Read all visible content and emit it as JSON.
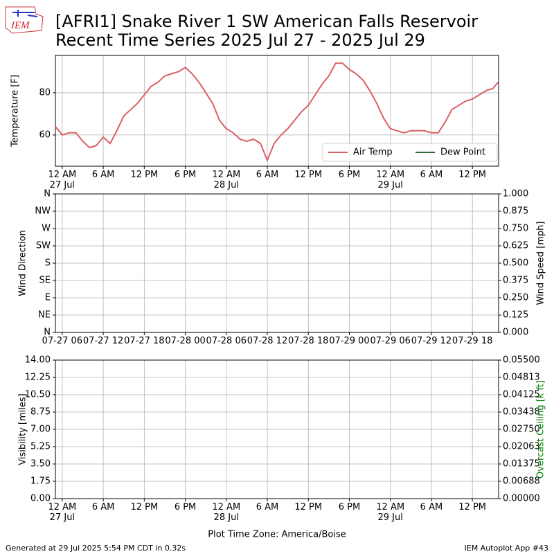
{
  "title": "[AFRI1] Snake River 1 SW American Falls Reservoir",
  "subtitle": "Recent Time Series 2025 Jul 27 - 2025 Jul 29",
  "logo_text": "IEM",
  "footer": {
    "left": "Generated at 29 Jul 2025 5:54 PM CDT in 0.32s",
    "right": "IEM Autoplot App #43"
  },
  "chart_data": [
    {
      "type": "line",
      "ylabel": "Temperature [F]",
      "grid": true,
      "legend": "lower right",
      "xlim": [
        "2025-07-26 23:00",
        "2025-07-29 15:50"
      ],
      "ylim": [
        45.2,
        97.7
      ],
      "yticks": [
        60,
        80
      ],
      "xticks": [
        {
          "value": "2025-07-27 00:00",
          "label": "12 AM\n27 Jul"
        },
        {
          "value": "2025-07-27 06:00",
          "label": "6 AM"
        },
        {
          "value": "2025-07-27 12:00",
          "label": "12 PM"
        },
        {
          "value": "2025-07-27 18:00",
          "label": "6 PM"
        },
        {
          "value": "2025-07-28 00:00",
          "label": "12 AM\n28 Jul"
        },
        {
          "value": "2025-07-28 06:00",
          "label": "6 AM"
        },
        {
          "value": "2025-07-28 12:00",
          "label": "12 PM"
        },
        {
          "value": "2025-07-28 18:00",
          "label": "6 PM"
        },
        {
          "value": "2025-07-29 00:00",
          "label": "12 AM\n29 Jul"
        },
        {
          "value": "2025-07-29 06:00",
          "label": "6 AM"
        },
        {
          "value": "2025-07-29 12:00",
          "label": "12 PM"
        }
      ],
      "x": [
        "2025-07-26 23:00",
        "2025-07-27 00:00",
        "2025-07-27 01:00",
        "2025-07-27 02:00",
        "2025-07-27 03:00",
        "2025-07-27 04:00",
        "2025-07-27 05:00",
        "2025-07-27 06:00",
        "2025-07-27 07:00",
        "2025-07-27 08:00",
        "2025-07-27 09:00",
        "2025-07-27 10:00",
        "2025-07-27 11:00",
        "2025-07-27 12:00",
        "2025-07-27 13:00",
        "2025-07-27 14:00",
        "2025-07-27 15:00",
        "2025-07-27 16:00",
        "2025-07-27 17:00",
        "2025-07-27 18:00",
        "2025-07-27 19:00",
        "2025-07-27 20:00",
        "2025-07-27 21:00",
        "2025-07-27 22:00",
        "2025-07-27 23:00",
        "2025-07-28 00:00",
        "2025-07-28 01:00",
        "2025-07-28 02:00",
        "2025-07-28 03:00",
        "2025-07-28 04:00",
        "2025-07-28 05:00",
        "2025-07-28 06:00",
        "2025-07-28 07:00",
        "2025-07-28 08:00",
        "2025-07-28 09:00",
        "2025-07-28 10:00",
        "2025-07-28 11:00",
        "2025-07-28 12:00",
        "2025-07-28 13:00",
        "2025-07-28 14:00",
        "2025-07-28 15:00",
        "2025-07-28 16:00",
        "2025-07-28 17:00",
        "2025-07-28 18:00",
        "2025-07-28 19:00",
        "2025-07-28 20:00",
        "2025-07-28 21:00",
        "2025-07-28 22:00",
        "2025-07-28 23:00",
        "2025-07-29 00:00",
        "2025-07-29 01:00",
        "2025-07-29 02:00",
        "2025-07-29 03:00",
        "2025-07-29 04:00",
        "2025-07-29 05:00",
        "2025-07-29 06:00",
        "2025-07-29 07:00",
        "2025-07-29 08:00",
        "2025-07-29 09:00",
        "2025-07-29 10:00",
        "2025-07-29 11:00",
        "2025-07-29 12:00",
        "2025-07-29 13:00",
        "2025-07-29 14:00",
        "2025-07-29 15:00",
        "2025-07-29 15:45"
      ],
      "series": [
        {
          "name": "Air Temp",
          "color": "#d95f63",
          "values": [
            64,
            60,
            61,
            61,
            57,
            54,
            55,
            59,
            56,
            62,
            69,
            72,
            75,
            79,
            83,
            85,
            88,
            89,
            90,
            92,
            89,
            85,
            80,
            75,
            67,
            63,
            61,
            58,
            57,
            58,
            56,
            48,
            56,
            60,
            63,
            67,
            71,
            74,
            79,
            84,
            88,
            94,
            94,
            91,
            89,
            86,
            81,
            75,
            68,
            63,
            62,
            61,
            62,
            62,
            62,
            61,
            61,
            66,
            72,
            74,
            76,
            77,
            79,
            81,
            82,
            85
          ]
        },
        {
          "name": "Dew Point",
          "color": "#2e6b2e",
          "values": [
            null,
            null,
            null,
            null,
            null,
            null,
            null,
            null,
            null,
            null,
            null,
            null,
            null,
            null,
            null,
            null,
            null,
            null,
            null,
            null,
            null,
            null,
            null,
            null,
            null,
            null,
            null,
            null,
            null,
            null,
            null,
            null,
            null,
            null,
            null,
            null,
            null,
            null,
            null,
            null,
            null,
            null,
            null,
            null,
            null,
            null,
            null,
            null,
            null,
            null,
            null,
            null,
            null,
            null,
            null,
            null,
            null,
            null,
            null,
            null,
            null,
            null,
            null,
            null,
            null,
            null
          ]
        }
      ]
    },
    {
      "type": "line",
      "ylabel": "Wind Direction",
      "y2label": "Wind Speed [mph]",
      "grid": true,
      "xlim": [
        "2025-07-26 23:00",
        "2025-07-29 15:50"
      ],
      "ylim": [
        0,
        360
      ],
      "yticks": [
        {
          "value": 0,
          "label": "N"
        },
        {
          "value": 45,
          "label": "NE"
        },
        {
          "value": 90,
          "label": "E"
        },
        {
          "value": 135,
          "label": "SE"
        },
        {
          "value": 180,
          "label": "S"
        },
        {
          "value": 225,
          "label": "SW"
        },
        {
          "value": 270,
          "label": "W"
        },
        {
          "value": 315,
          "label": "NW"
        },
        {
          "value": 360,
          "label": "N"
        }
      ],
      "y2lim": [
        0,
        1
      ],
      "y2ticks": [
        {
          "value": 0,
          "label": "0.000"
        },
        {
          "value": 0.125,
          "label": "0.125"
        },
        {
          "value": 0.25,
          "label": "0.250"
        },
        {
          "value": 0.375,
          "label": "0.375"
        },
        {
          "value": 0.5,
          "label": "0.500"
        },
        {
          "value": 0.625,
          "label": "0.625"
        },
        {
          "value": 0.75,
          "label": "0.750"
        },
        {
          "value": 0.875,
          "label": "0.875"
        },
        {
          "value": 1,
          "label": "1.000"
        }
      ],
      "xticks": [
        {
          "value": "2025-07-27 00:00",
          "label": "07-27 06"
        },
        {
          "value": "2025-07-27 06:00",
          "label": "07-27 12"
        },
        {
          "value": "2025-07-27 12:00",
          "label": "07-27 18"
        },
        {
          "value": "2025-07-27 18:00",
          "label": "07-28 00"
        },
        {
          "value": "2025-07-28 00:00",
          "label": "07-28 06"
        },
        {
          "value": "2025-07-28 06:00",
          "label": "07-28 12"
        },
        {
          "value": "2025-07-28 12:00",
          "label": "07-28 18"
        },
        {
          "value": "2025-07-28 18:00",
          "label": "07-29 00"
        },
        {
          "value": "2025-07-29 00:00",
          "label": "07-29 06"
        },
        {
          "value": "2025-07-29 06:00",
          "label": "07-29 12"
        },
        {
          "value": "2025-07-29 12:00",
          "label": "07-29 18"
        }
      ]
    },
    {
      "type": "line",
      "ylabel": "Visibility [miles]",
      "y2label": "Overcast Ceiling [k ft]",
      "y2label_color": "#008000",
      "grid": true,
      "xlabel": "Plot Time Zone: America/Boise",
      "xlim": [
        "2025-07-26 23:00",
        "2025-07-29 15:50"
      ],
      "ylim": [
        0,
        14
      ],
      "yticks": [
        {
          "value": 0,
          "label": "0.00"
        },
        1.75,
        {
          "value": 3.5,
          "label": "3.50"
        },
        5.25,
        {
          "value": 7,
          "label": "7.00"
        },
        8.75,
        {
          "value": 10.5,
          "label": "10.50"
        },
        12.25,
        {
          "value": 14,
          "label": "14.00"
        }
      ],
      "y2lim": [
        0,
        0.055
      ],
      "y2ticks": [
        {
          "value": 0,
          "label": "0.00000"
        },
        {
          "value": 0.006875,
          "label": "0.00688"
        },
        {
          "value": 0.01375,
          "label": "0.01375"
        },
        {
          "value": 0.020625,
          "label": "0.02063"
        },
        {
          "value": 0.0275,
          "label": "0.02750"
        },
        {
          "value": 0.034375,
          "label": "0.03438"
        },
        {
          "value": 0.04125,
          "label": "0.04125"
        },
        {
          "value": 0.048125,
          "label": "0.04813"
        },
        {
          "value": 0.055,
          "label": "0.05500"
        }
      ],
      "xticks": [
        {
          "value": "2025-07-27 00:00",
          "label": "12 AM\n27 Jul"
        },
        {
          "value": "2025-07-27 06:00",
          "label": "6 AM"
        },
        {
          "value": "2025-07-27 12:00",
          "label": "12 PM"
        },
        {
          "value": "2025-07-27 18:00",
          "label": "6 PM"
        },
        {
          "value": "2025-07-28 00:00",
          "label": "12 AM\n28 Jul"
        },
        {
          "value": "2025-07-28 06:00",
          "label": "6 AM"
        },
        {
          "value": "2025-07-28 12:00",
          "label": "12 PM"
        },
        {
          "value": "2025-07-28 18:00",
          "label": "6 PM"
        },
        {
          "value": "2025-07-29 00:00",
          "label": "12 AM\n29 Jul"
        },
        {
          "value": "2025-07-29 06:00",
          "label": "6 AM"
        },
        {
          "value": "2025-07-29 12:00",
          "label": "12 PM"
        }
      ]
    }
  ]
}
